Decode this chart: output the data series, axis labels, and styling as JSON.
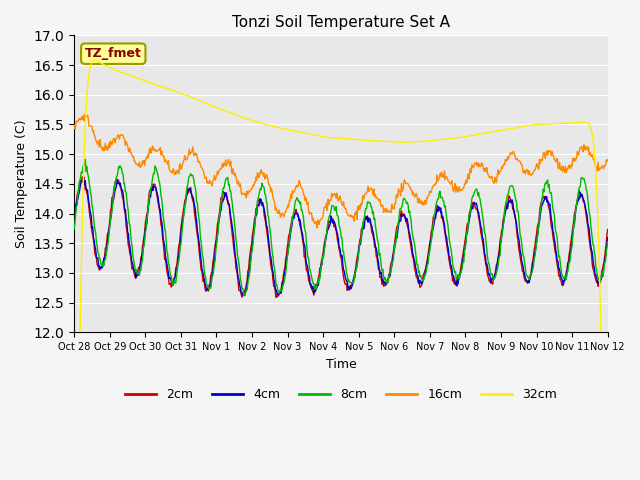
{
  "title": "Tonzi Soil Temperature Set A",
  "xlabel": "Time",
  "ylabel": "Soil Temperature (C)",
  "ylim": [
    12.0,
    17.0
  ],
  "yticks": [
    12.0,
    12.5,
    13.0,
    13.5,
    14.0,
    14.5,
    15.0,
    15.5,
    16.0,
    16.5,
    17.0
  ],
  "xtick_labels": [
    "Oct 28",
    "Oct 29",
    "Oct 30",
    "Oct 31",
    "Nov 1",
    "Nov 2",
    "Nov 3",
    "Nov 4",
    "Nov 5",
    "Nov 6",
    "Nov 7",
    "Nov 8",
    "Nov 9",
    "Nov 10",
    "Nov 11",
    "Nov 12"
  ],
  "n_days": 15,
  "pts_per_day": 48,
  "colors": {
    "2cm": "#cc0000",
    "4cm": "#0000cc",
    "8cm": "#00bb00",
    "16cm": "#ff8800",
    "32cm": "#ffee00"
  },
  "legend_label": "TZ_fmet",
  "legend_box_facecolor": "#ffff99",
  "legend_box_edgecolor": "#999900",
  "fig_facecolor": "#f5f5f5",
  "axes_facecolor": "#e8e8e8",
  "grid_color": "#ffffff",
  "line_width": 1.0,
  "title_fontsize": 11,
  "label_fontsize": 9,
  "tick_fontsize": 7,
  "legend_fontsize": 9
}
